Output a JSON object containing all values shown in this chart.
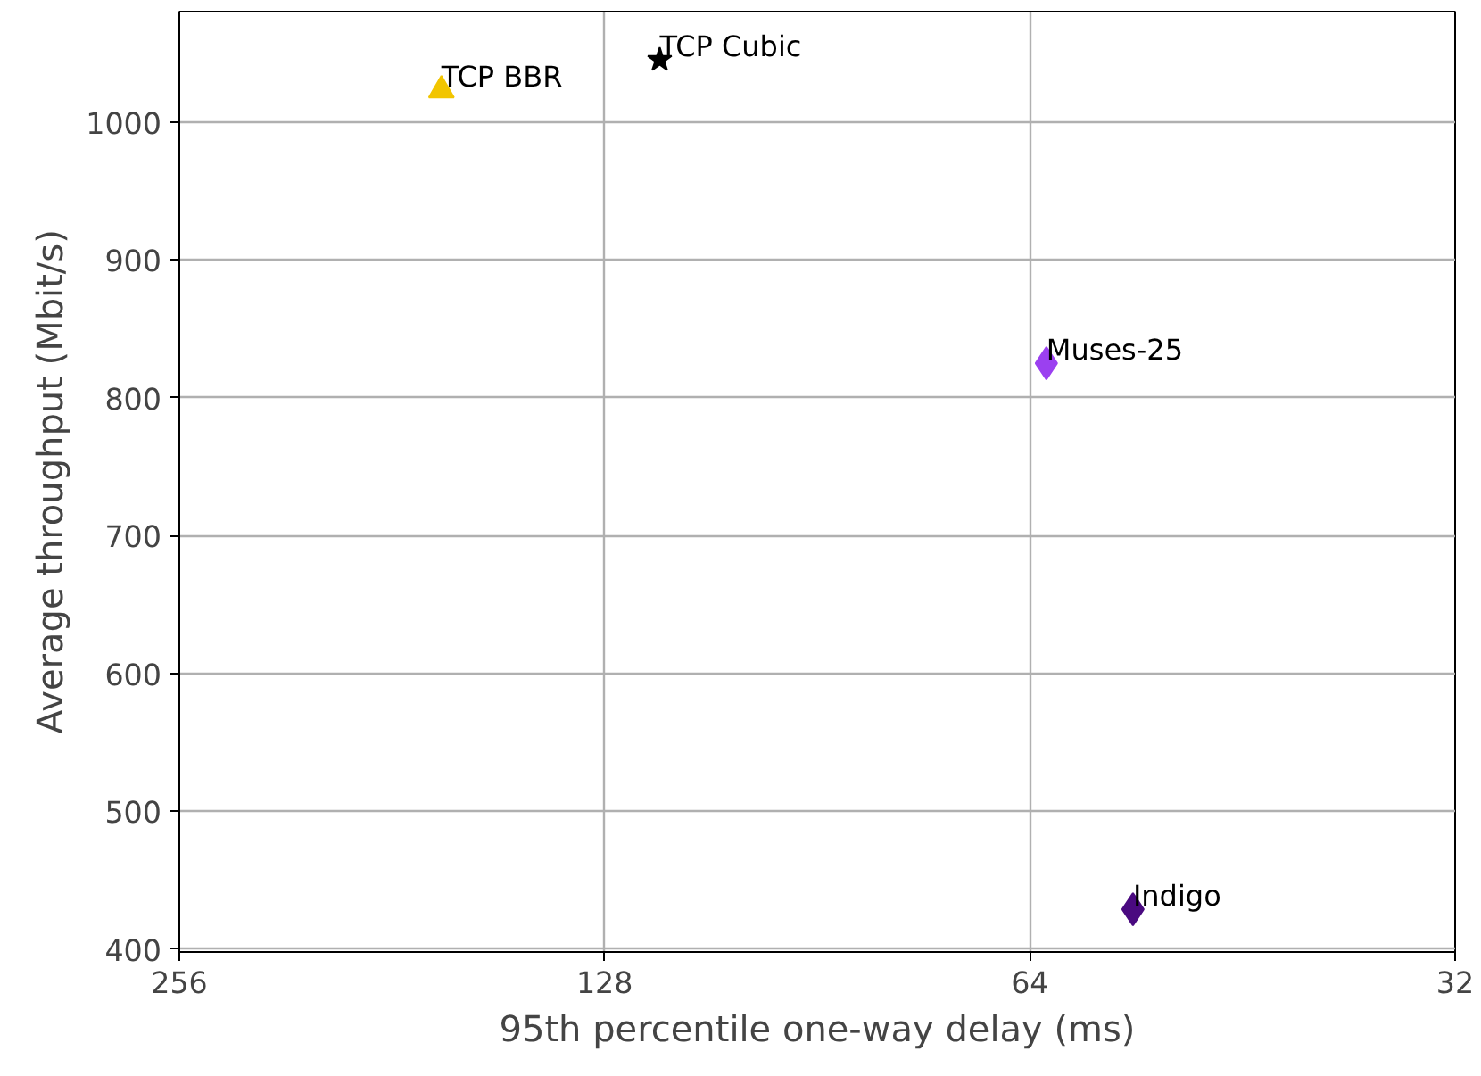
{
  "chart_data": {
    "type": "scatter",
    "xlabel": "95th percentile one-way delay (ms)",
    "ylabel": "Average throughput (Mbit/s)",
    "log": "x",
    "xlim": [
      256,
      32
    ],
    "xticks": [
      256,
      128,
      64,
      32
    ],
    "ylim": [
      398,
      1080
    ],
    "yticks": [
      400,
      500,
      600,
      700,
      800,
      900,
      1000
    ],
    "grid": true,
    "legend": false,
    "series": [
      {
        "name": "TCP BBR",
        "color": "#f2c500",
        "marker": "triangle",
        "x": [
          167
        ],
        "values": [
          1023
        ]
      },
      {
        "name": "TCP Cubic",
        "color": "#000000",
        "marker": "star",
        "x": [
          117
        ],
        "values": [
          1045
        ]
      },
      {
        "name": "Muses-25",
        "color": "#9b40f0",
        "marker": "diamond",
        "x": [
          62.3
        ],
        "values": [
          825
        ]
      },
      {
        "name": "Indigo",
        "color": "#4a0a80",
        "marker": "diamond",
        "x": [
          54.1
        ],
        "values": [
          429
        ]
      }
    ]
  }
}
